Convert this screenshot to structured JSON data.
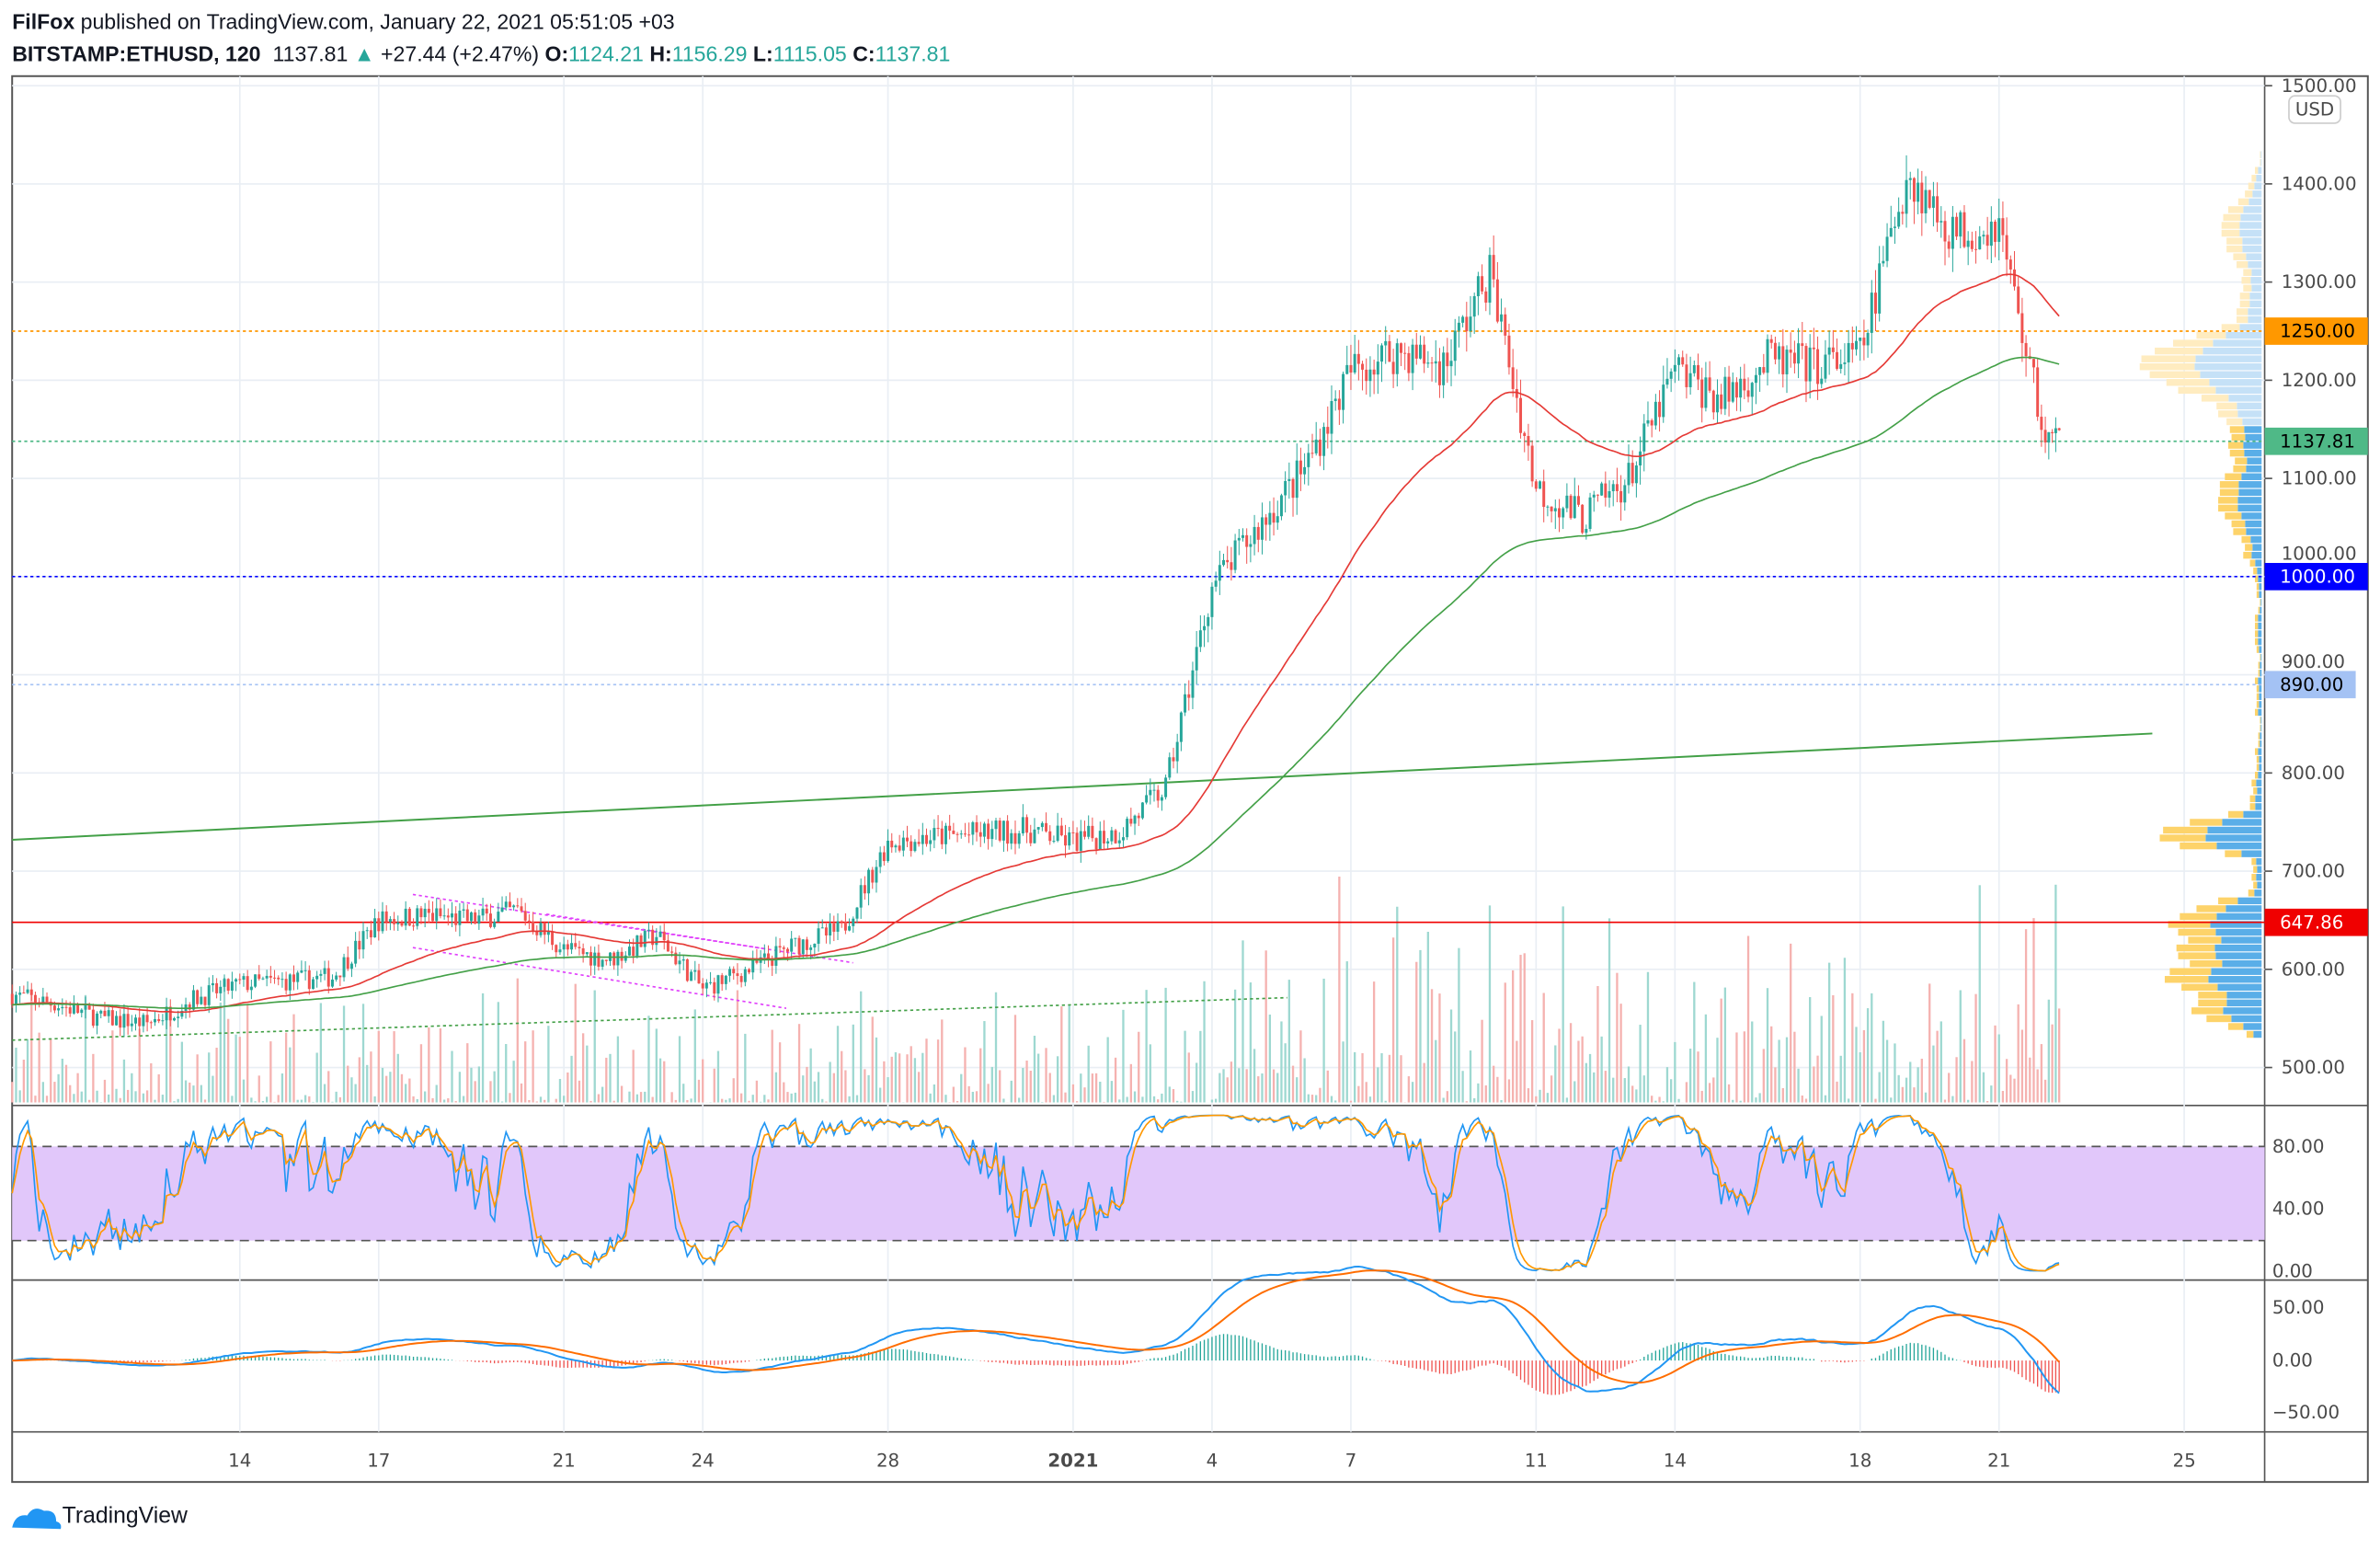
{
  "header": {
    "author": "FilFox",
    "published": "published on TradingView.com, January 22, 2021 05:51:05 +03",
    "symbol": "BITSTAMP:ETHUSD, 120",
    "last": "1137.81",
    "change": "+27.44 (+2.47%)",
    "o_label": "O:",
    "o": "1124.21",
    "h_label": "H:",
    "h": "1156.29",
    "l_label": "L:",
    "l": "1115.05",
    "c_label": "C:",
    "c": "1137.81"
  },
  "currency": "USD",
  "brand": "TradingView",
  "colors": {
    "up": "#26a69a",
    "down": "#ef5350",
    "accent": "#26a69a"
  },
  "price_axis": [
    "1500.00",
    "1400.00",
    "1300.00",
    "1200.00",
    "1100.00",
    "1000.00",
    "900.00",
    "800.00",
    "700.00",
    "600.00",
    "500.00"
  ],
  "price_tags": [
    {
      "label": "1250.00",
      "price": 1250,
      "color": "#ff9800",
      "text": "#000",
      "style": "dotted"
    },
    {
      "label": "1137.81",
      "price": 1137.81,
      "color": "#4fb987",
      "text": "#000",
      "style": "dotted"
    },
    {
      "label": "1000.00",
      "price": 1000,
      "color": "#0000ff",
      "text": "#fff",
      "style": "dotted"
    },
    {
      "label": "890.00",
      "price": 890,
      "color": "#a4c2f4",
      "text": "#000",
      "style": "dotted"
    },
    {
      "label": "647.86",
      "price": 647.86,
      "color": "#f00000",
      "text": "#fff",
      "style": "solid"
    }
  ],
  "stoch_axis": [
    "80.00",
    "40.00",
    "0.00"
  ],
  "macd_axis": [
    "50.00",
    "0.00",
    "−50.00"
  ],
  "time_axis": [
    {
      "label": "14",
      "day": 0
    },
    {
      "label": "17",
      "day": 3
    },
    {
      "label": "21",
      "day": 7
    },
    {
      "label": "24",
      "day": 10
    },
    {
      "label": "28",
      "day": 14
    },
    {
      "label": "2021",
      "day": 18
    },
    {
      "label": "4",
      "day": 21
    },
    {
      "label": "7",
      "day": 24
    },
    {
      "label": "11",
      "day": 28
    },
    {
      "label": "14",
      "day": 31
    },
    {
      "label": "18",
      "day": 35
    },
    {
      "label": "21",
      "day": 38
    },
    {
      "label": "25",
      "day": 42
    }
  ],
  "chart_data": {
    "type": "candlestick",
    "title": "BITSTAMP:ETHUSD, 120",
    "x_unit": "days since Dec 14 2020",
    "ylim": [
      470,
      1510
    ],
    "daily_close": {
      "day": [
        -5,
        -4,
        -3,
        -2,
        -1,
        0,
        1,
        2,
        3,
        4,
        5,
        6,
        7,
        8,
        9,
        10,
        11,
        12,
        13,
        14,
        15,
        16,
        17,
        18,
        19,
        20,
        21,
        22,
        23,
        24,
        25,
        26,
        27,
        28,
        29,
        30,
        31,
        32,
        33,
        34,
        35,
        36,
        37,
        38,
        39,
        39.3
      ],
      "close": [
        575,
        565,
        550,
        545,
        570,
        585,
        588,
        592,
        650,
        655,
        650,
        660,
        620,
        610,
        635,
        580,
        600,
        625,
        640,
        730,
        735,
        738,
        742,
        730,
        740,
        785,
        990,
        1050,
        1110,
        1210,
        1230,
        1215,
        1310,
        1090,
        1060,
        1100,
        1210,
        1180,
        1220,
        1215,
        1225,
        1410,
        1350,
        1360,
        1140,
        1137.81
      ]
    },
    "indicators": [
      "EMA (red)",
      "SMA (green)",
      "Stoch RSI",
      "MACD",
      "Volume",
      "Volume Profile"
    ]
  }
}
